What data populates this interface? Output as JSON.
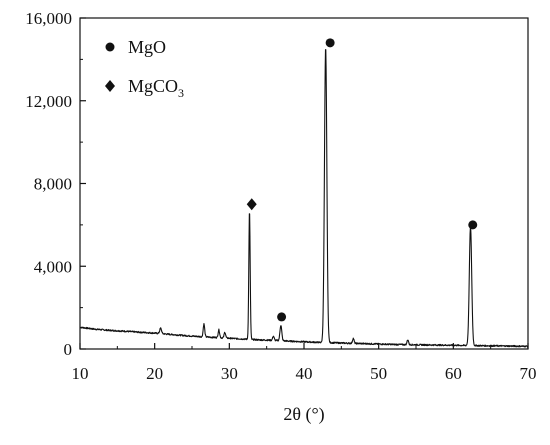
{
  "chart_data": {
    "type": "line",
    "title": "",
    "xlabel": "2θ (°)",
    "ylabel": "",
    "xlim": [
      10,
      70
    ],
    "ylim": [
      0,
      16000
    ],
    "x_ticks": [
      10,
      20,
      30,
      40,
      50,
      60,
      70
    ],
    "x_tick_labels": [
      "10",
      "20",
      "30",
      "40",
      "50",
      "60",
      "70"
    ],
    "y_ticks": [
      0,
      4000,
      8000,
      12000,
      16000
    ],
    "y_tick_labels": [
      "0",
      "4,000",
      "8,000",
      "12,000",
      "16,000"
    ],
    "grid": false,
    "legend_position": "top-left",
    "legend": [
      {
        "marker": "circle",
        "label": "MgO",
        "sub": ""
      },
      {
        "marker": "diamond",
        "label": "MgCO",
        "sub": "3"
      }
    ],
    "background": [
      [
        10,
        1050
      ],
      [
        12,
        960
      ],
      [
        14,
        900
      ],
      [
        16,
        860
      ],
      [
        18,
        810
      ],
      [
        20,
        770
      ],
      [
        22,
        710
      ],
      [
        24,
        650
      ],
      [
        26,
        600
      ],
      [
        28,
        560
      ],
      [
        30,
        520
      ],
      [
        32,
        480
      ],
      [
        34,
        440
      ],
      [
        36,
        420
      ],
      [
        38,
        380
      ],
      [
        40,
        350
      ],
      [
        42,
        320
      ],
      [
        44,
        300
      ],
      [
        46,
        280
      ],
      [
        48,
        260
      ],
      [
        50,
        240
      ],
      [
        52,
        220
      ],
      [
        54,
        210
      ],
      [
        56,
        200
      ],
      [
        58,
        190
      ],
      [
        60,
        180
      ],
      [
        62,
        170
      ],
      [
        64,
        160
      ],
      [
        66,
        150
      ],
      [
        68,
        140
      ],
      [
        70,
        130
      ]
    ],
    "peaks": [
      {
        "x": 20.8,
        "y": 260,
        "w": 0.12
      },
      {
        "x": 26.6,
        "y": 620,
        "w": 0.1
      },
      {
        "x": 28.6,
        "y": 380,
        "w": 0.1
      },
      {
        "x": 29.4,
        "y": 280,
        "w": 0.1
      },
      {
        "x": 32.7,
        "y": 6200,
        "w": 0.09
      },
      {
        "x": 35.9,
        "y": 200,
        "w": 0.1
      },
      {
        "x": 36.9,
        "y": 750,
        "w": 0.12
      },
      {
        "x": 42.9,
        "y": 14250,
        "w": 0.16
      },
      {
        "x": 46.6,
        "y": 240,
        "w": 0.1
      },
      {
        "x": 53.9,
        "y": 240,
        "w": 0.1
      },
      {
        "x": 62.3,
        "y": 5750,
        "w": 0.16
      }
    ],
    "peak_markers": [
      {
        "x": 33.0,
        "y": 7000,
        "marker": "diamond",
        "phase": "MgCO3"
      },
      {
        "x": 37.0,
        "y": 1550,
        "marker": "circle",
        "phase": "MgO"
      },
      {
        "x": 43.5,
        "y": 14800,
        "marker": "circle",
        "phase": "MgO"
      },
      {
        "x": 62.6,
        "y": 6000,
        "marker": "circle",
        "phase": "MgO"
      }
    ],
    "colors": {
      "line": "#111111",
      "axis": "#111111",
      "marker": "#111111"
    }
  }
}
